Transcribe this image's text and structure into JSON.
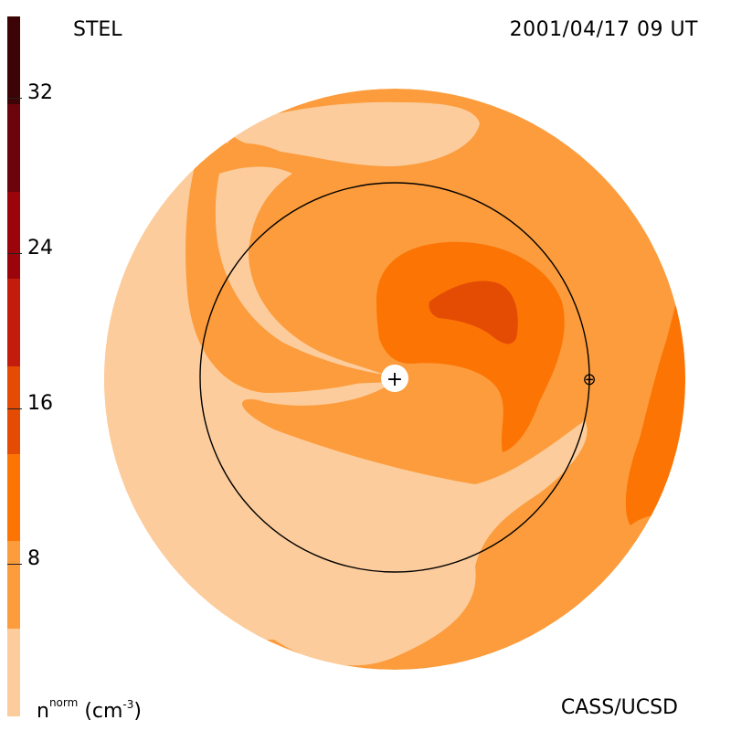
{
  "header": {
    "instrument": "STEL",
    "timestamp": "2001/04/17 09 UT"
  },
  "footer": {
    "credit": "CASS/UCSD",
    "unit_symbol": "n",
    "unit_superscript": "norm",
    "unit_paren": "(cm",
    "unit_exponent": "-3",
    "unit_close": ")"
  },
  "colorbar": {
    "ticks": [
      "8",
      "16",
      "24",
      "32"
    ],
    "colors": [
      "#fccc9c",
      "#fc9c3c",
      "#fc7404",
      "#e44c04",
      "#c41c0c",
      "#9c040c",
      "#6c040c",
      "#3c0404"
    ],
    "range": [
      0,
      36
    ]
  },
  "map": {
    "sun_marker": "+",
    "earth_marker": "⊕",
    "colors": {
      "lightest": "#fccc9c",
      "light": "#fc9c3c",
      "medium": "#fc7404",
      "dark": "#e44c04"
    }
  }
}
